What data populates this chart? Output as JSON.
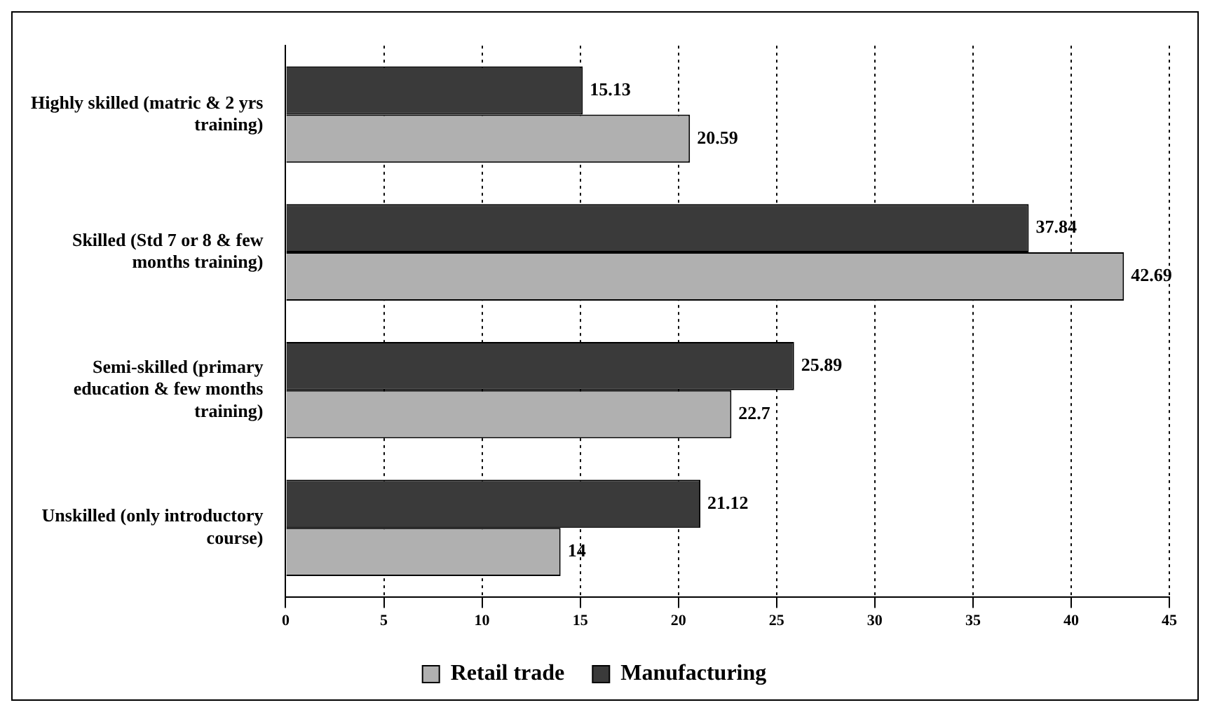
{
  "chart_data": {
    "type": "bar",
    "orientation": "horizontal",
    "categories": [
      "Highly skilled (matric & 2 yrs training)",
      "Skilled (Std 7 or 8 & few months training)",
      "Semi-skilled (primary education & few months training)",
      "Unskilled (only introductory course)"
    ],
    "series": [
      {
        "name": "Manufacturing",
        "color": "#3a3a3a",
        "values": [
          15.13,
          37.84,
          25.89,
          21.12
        ]
      },
      {
        "name": "Retail trade",
        "color": "#b0b0b0",
        "values": [
          20.59,
          42.69,
          22.7,
          14
        ]
      }
    ],
    "xlim": [
      0,
      45
    ],
    "xticks": [
      0,
      5,
      10,
      15,
      20,
      25,
      30,
      35,
      40,
      45
    ],
    "grid": "x",
    "legend": "bottom",
    "data_labels": true
  }
}
